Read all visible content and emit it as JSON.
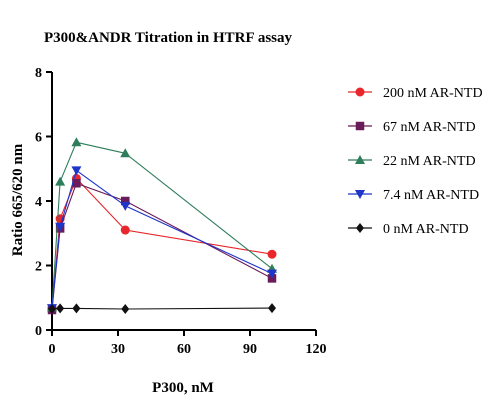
{
  "chart_data": {
    "type": "line",
    "title": "P300&ANDR Titration in HTRF assay",
    "xlabel": "P300, nM",
    "ylabel": "Ratio 665/620 nm",
    "xlim": [
      0,
      120
    ],
    "ylim": [
      0,
      8
    ],
    "xticks": [
      "0",
      "30",
      "60",
      "90",
      "120"
    ],
    "yticks": [
      "0",
      "2",
      "4",
      "6",
      "8"
    ],
    "legend_position": "right",
    "grid": false,
    "series": [
      {
        "name": "200 nM AR-NTD",
        "color": "#e8262b",
        "marker": "circle",
        "points": [
          [
            0,
            0.65
          ],
          [
            3.7,
            3.45
          ],
          [
            11.1,
            4.7
          ],
          [
            33.3,
            3.1
          ],
          [
            100,
            2.35
          ]
        ]
      },
      {
        "name": "67 nM AR-NTD",
        "color": "#6a1b59",
        "marker": "square",
        "points": [
          [
            0,
            0.62
          ],
          [
            3.7,
            3.15
          ],
          [
            11.1,
            4.55
          ],
          [
            33.3,
            4.0
          ],
          [
            100,
            1.6
          ]
        ]
      },
      {
        "name": "22 nM AR-NTD",
        "color": "#2e7d5b",
        "marker": "triangle-up",
        "points": [
          [
            0,
            0.7
          ],
          [
            3.7,
            4.6
          ],
          [
            11.1,
            5.82
          ],
          [
            33.3,
            5.48
          ],
          [
            100,
            1.9
          ]
        ]
      },
      {
        "name": "7.4  nM AR-NTD",
        "color": "#1f35c9",
        "marker": "triangle-down",
        "points": [
          [
            0,
            0.68
          ],
          [
            3.7,
            3.2
          ],
          [
            11.1,
            4.95
          ],
          [
            33.3,
            3.85
          ],
          [
            100,
            1.75
          ]
        ]
      },
      {
        "name": "0  nM AR-NTD",
        "color": "#111111",
        "marker": "diamond",
        "points": [
          [
            0,
            0.65
          ],
          [
            3.7,
            0.67
          ],
          [
            11.1,
            0.67
          ],
          [
            33.3,
            0.65
          ],
          [
            100,
            0.68
          ]
        ]
      }
    ]
  }
}
